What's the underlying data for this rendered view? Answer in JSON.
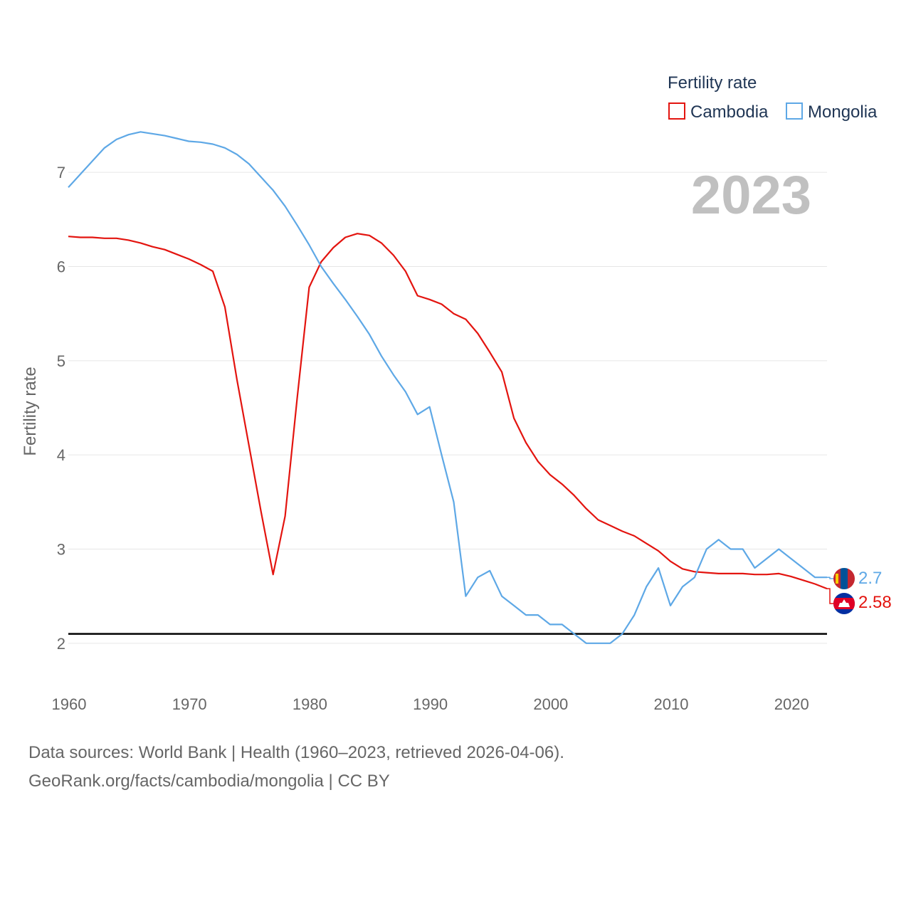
{
  "chart_data": {
    "type": "line",
    "title": "Fertility rate",
    "ylabel": "Fertility rate",
    "xlabel": "",
    "current_year_label": "2023",
    "xlim": [
      1960,
      2023
    ],
    "ylim": [
      1.5,
      7.5
    ],
    "x_ticks": [
      1960,
      1970,
      1980,
      1990,
      2000,
      2010,
      2020
    ],
    "y_ticks": [
      2,
      3,
      4,
      5,
      6,
      7
    ],
    "reference_line": 2.1,
    "legend_title": "Fertility rate",
    "legend_position": "top-right",
    "x": [
      1960,
      1961,
      1962,
      1963,
      1964,
      1965,
      1966,
      1967,
      1968,
      1969,
      1970,
      1971,
      1972,
      1973,
      1974,
      1975,
      1976,
      1977,
      1978,
      1979,
      1980,
      1981,
      1982,
      1983,
      1984,
      1985,
      1986,
      1987,
      1988,
      1989,
      1990,
      1991,
      1992,
      1993,
      1994,
      1995,
      1996,
      1997,
      1998,
      1999,
      2000,
      2001,
      2002,
      2003,
      2004,
      2005,
      2006,
      2007,
      2008,
      2009,
      2010,
      2011,
      2012,
      2013,
      2014,
      2015,
      2016,
      2017,
      2018,
      2019,
      2020,
      2021,
      2022,
      2023
    ],
    "series": [
      {
        "name": "Cambodia",
        "color": "#e3140f",
        "end_label": "2.58",
        "values": [
          6.32,
          6.31,
          6.31,
          6.3,
          6.3,
          6.28,
          6.25,
          6.21,
          6.18,
          6.13,
          6.08,
          6.02,
          5.95,
          5.57,
          4.8,
          4.1,
          3.4,
          2.73,
          3.35,
          4.6,
          5.78,
          6.05,
          6.2,
          6.31,
          6.35,
          6.33,
          6.25,
          6.12,
          5.95,
          5.69,
          5.65,
          5.6,
          5.5,
          5.44,
          5.29,
          5.09,
          4.88,
          4.39,
          4.13,
          3.93,
          3.79,
          3.69,
          3.57,
          3.43,
          3.31,
          3.25,
          3.19,
          3.14,
          3.06,
          2.98,
          2.87,
          2.79,
          2.76,
          2.75,
          2.74,
          2.74,
          2.74,
          2.73,
          2.73,
          2.74,
          2.71,
          2.67,
          2.63,
          2.58
        ]
      },
      {
        "name": "Mongolia",
        "color": "#5ea8e6",
        "end_label": "2.7",
        "values": [
          6.84,
          6.98,
          7.12,
          7.26,
          7.35,
          7.4,
          7.43,
          7.41,
          7.39,
          7.36,
          7.33,
          7.32,
          7.3,
          7.26,
          7.19,
          7.09,
          6.95,
          6.81,
          6.64,
          6.44,
          6.23,
          6.0,
          5.82,
          5.65,
          5.47,
          5.28,
          5.05,
          4.85,
          4.67,
          4.43,
          4.51,
          4.0,
          3.5,
          2.5,
          2.7,
          2.77,
          2.5,
          2.4,
          2.3,
          2.3,
          2.2,
          2.2,
          2.1,
          2.0,
          2.0,
          2.0,
          2.1,
          2.3,
          2.6,
          2.8,
          2.4,
          2.6,
          2.7,
          3.0,
          3.1,
          3.0,
          3.0,
          2.8,
          2.9,
          3.0,
          2.9,
          2.8,
          2.7,
          2.7
        ]
      }
    ]
  },
  "footer": {
    "line1": "Data sources: World Bank | Health (1960–2023, retrieved 2026-04-06).",
    "line2": "GeoRank.org/facts/cambodia/mongolia | CC BY"
  }
}
